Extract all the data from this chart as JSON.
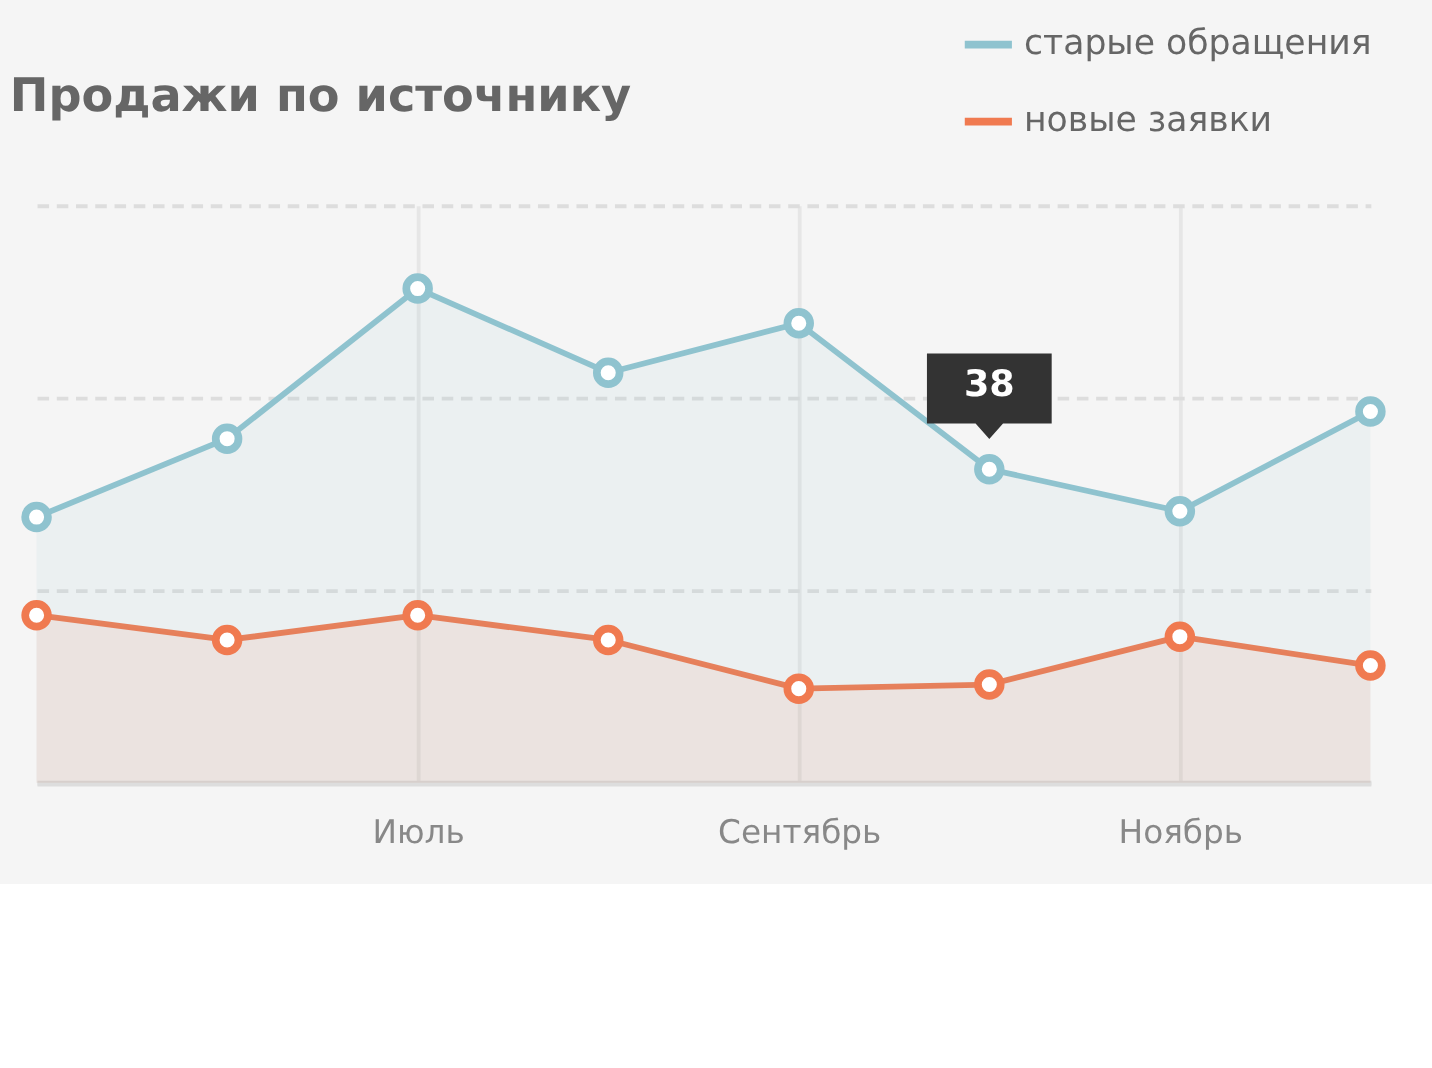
{
  "chart_data": {
    "type": "area",
    "title": "Продажи по источнику",
    "categories": [
      null,
      null,
      "Июль",
      null,
      "Сентябрь",
      null,
      "Ноябрь",
      null
    ],
    "series": [
      {
        "name": "старые обращения",
        "color": "#8fc3cf",
        "values": [
          32.2,
          41.7,
          59.9,
          49.7,
          55.7,
          38,
          32.9,
          45.0
        ],
        "value_labels": [
          null,
          null,
          null,
          null,
          null,
          "38",
          null,
          null
        ]
      },
      {
        "name": "новые заявки",
        "color": "#f07a50",
        "values": [
          20.3,
          17.3,
          20.3,
          17.3,
          11.4,
          11.9,
          17.7,
          14.2
        ]
      }
    ],
    "ylim": [
      0,
      70
    ],
    "yticks": [
      {
        "value": 0,
        "label": null
      },
      {
        "value": 23.3,
        "label": null
      },
      {
        "value": 46.7,
        "label": null
      },
      {
        "value": 70,
        "label": null
      }
    ],
    "tick_labels": "x",
    "grid": true,
    "legend": "top right",
    "marker": "circle",
    "line_style": "solid"
  }
}
